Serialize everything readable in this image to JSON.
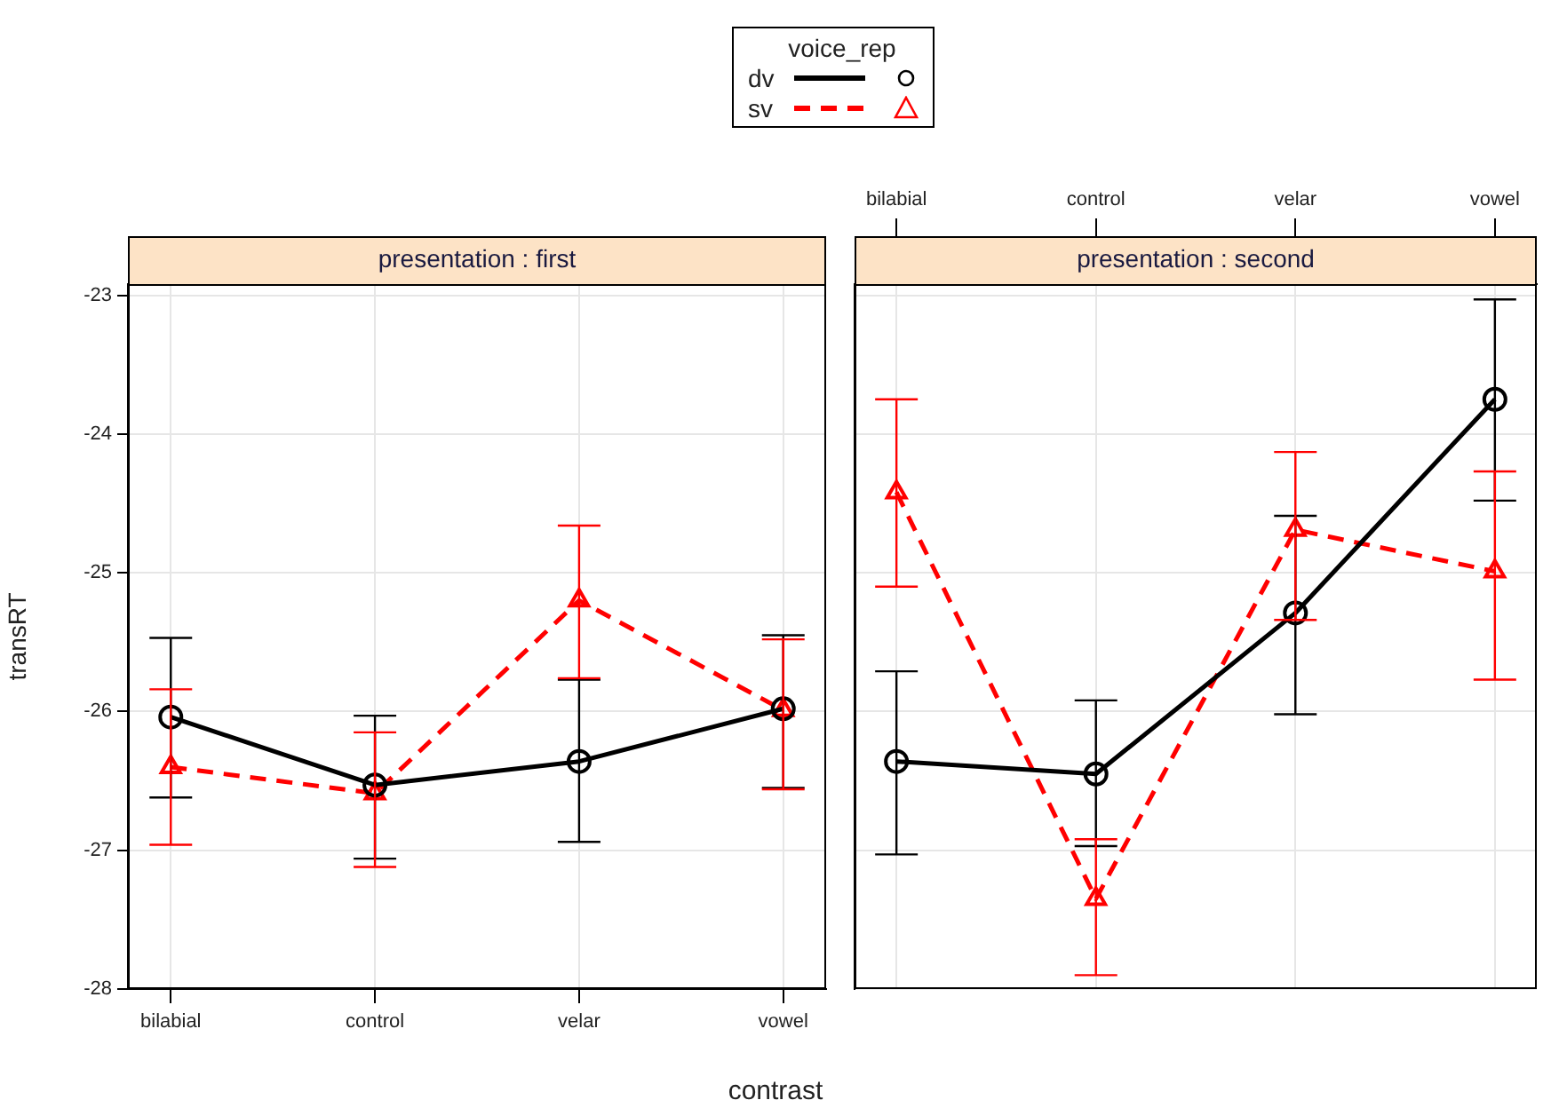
{
  "chart_data": [
    {
      "type": "line",
      "title": "presentation : first",
      "xlabel": "contrast",
      "ylabel": "transRT",
      "legend_title": "voice_rep",
      "legend": "top",
      "categories": [
        "bilabial",
        "control",
        "velar",
        "vowel"
      ],
      "ylim": [
        -28,
        -22.92
      ],
      "yticks": [
        -28,
        -27,
        -26,
        -25,
        -24,
        -23
      ],
      "grid": true,
      "series": [
        {
          "name": "dv",
          "color": "#000000",
          "marker": "circle",
          "line_style": "solid",
          "values": [
            -26.04,
            -26.53,
            -26.36,
            -25.98
          ],
          "errors": [
            [
              -26.62,
              -25.47
            ],
            [
              -27.06,
              -26.03
            ],
            [
              -26.94,
              -25.77
            ],
            [
              -26.55,
              -25.45
            ]
          ]
        },
        {
          "name": "sv",
          "color": "#ff0000",
          "marker": "triangle",
          "line_style": "dashed",
          "values": [
            -26.4,
            -26.59,
            -25.2,
            -25.99
          ],
          "errors": [
            [
              -26.96,
              -25.84
            ],
            [
              -27.12,
              -26.15
            ],
            [
              -25.76,
              -24.66
            ],
            [
              -26.56,
              -25.48
            ]
          ]
        }
      ]
    },
    {
      "type": "line",
      "title": "presentation : second",
      "categories": [
        "bilabial",
        "control",
        "velar",
        "vowel"
      ],
      "ylim": [
        -28,
        -22.92
      ],
      "yticks": [
        -28,
        -27,
        -26,
        -25,
        -24,
        -23
      ],
      "grid": true,
      "tick_labels": "x",
      "legend": false,
      "series": [
        {
          "color": "#000000",
          "marker": "circle",
          "line_style": "solid",
          "values": [
            -26.36,
            -26.45,
            -25.29,
            -23.75
          ],
          "errors": [
            [
              -27.03,
              -25.71
            ],
            [
              -26.97,
              -25.92
            ],
            [
              -26.02,
              -24.59
            ],
            [
              -24.48,
              -23.03
            ]
          ]
        },
        {
          "color": "#ff0000",
          "marker": "triangle",
          "line_style": "dashed",
          "values": [
            -24.42,
            -27.35,
            -24.69,
            -24.99
          ],
          "errors": [
            [
              -25.1,
              -23.75
            ],
            [
              -27.9,
              -26.92
            ],
            [
              -25.34,
              -24.13
            ],
            [
              -25.77,
              -24.27
            ]
          ]
        }
      ]
    }
  ]
}
